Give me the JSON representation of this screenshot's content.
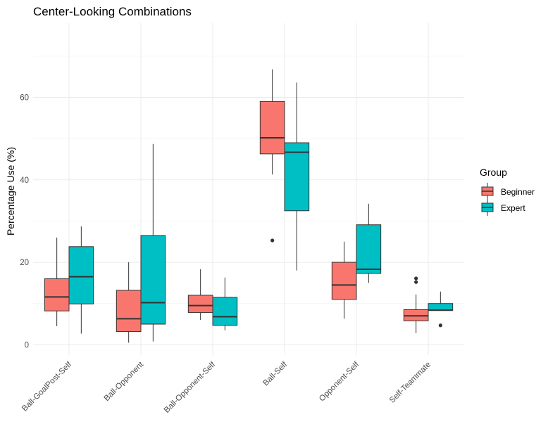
{
  "chart_data": {
    "type": "boxplot",
    "title": "Center-Looking Combinations",
    "xlabel": "",
    "ylabel": "Percentage Use (%)",
    "ylim": [
      -2.5,
      78
    ],
    "yticks": [
      0,
      20,
      40,
      60
    ],
    "y_minor_ticks": [
      10,
      30,
      50,
      70
    ],
    "grid": true,
    "legend": {
      "title": "Group",
      "position": "right",
      "entries": [
        {
          "name": "Beginner",
          "color": "#F8766D"
        },
        {
          "name": "Expert",
          "color": "#00BFC4"
        }
      ]
    },
    "categories": [
      "Ball-GoalPost-Self",
      "Ball-Opponent",
      "Ball-Opponent-Self",
      "Ball-Self",
      "Opponent-Self",
      "Self-Teammate"
    ],
    "series": [
      {
        "name": "Beginner",
        "color": "#F8766D",
        "boxes": [
          {
            "whisker_low": 4.5,
            "q1": 8.2,
            "median": 11.6,
            "q3": 16.0,
            "whisker_high": 26.0,
            "outliers": []
          },
          {
            "whisker_low": 0.5,
            "q1": 3.2,
            "median": 6.3,
            "q3": 13.2,
            "whisker_high": 20.0,
            "outliers": []
          },
          {
            "whisker_low": 6.0,
            "q1": 7.8,
            "median": 9.5,
            "q3": 12.0,
            "whisker_high": 18.3,
            "outliers": []
          },
          {
            "whisker_low": 41.3,
            "q1": 46.3,
            "median": 50.2,
            "q3": 59.0,
            "whisker_high": 66.8,
            "outliers": [
              25.3
            ]
          },
          {
            "whisker_low": 6.3,
            "q1": 11.0,
            "median": 14.5,
            "q3": 20.0,
            "whisker_high": 25.0,
            "outliers": []
          },
          {
            "whisker_low": 2.8,
            "q1": 5.8,
            "median": 7.0,
            "q3": 8.5,
            "whisker_high": 12.2,
            "outliers": [
              15.2,
              16.1
            ]
          }
        ]
      },
      {
        "name": "Expert",
        "color": "#00BFC4",
        "boxes": [
          {
            "whisker_low": 2.7,
            "q1": 9.9,
            "median": 16.5,
            "q3": 23.8,
            "whisker_high": 28.7,
            "outliers": []
          },
          {
            "whisker_low": 0.8,
            "q1": 5.0,
            "median": 10.2,
            "q3": 26.5,
            "whisker_high": 48.7,
            "outliers": []
          },
          {
            "whisker_low": 3.5,
            "q1": 4.7,
            "median": 6.8,
            "q3": 11.5,
            "whisker_high": 16.3,
            "outliers": []
          },
          {
            "whisker_low": 18.0,
            "q1": 32.5,
            "median": 46.7,
            "q3": 49.0,
            "whisker_high": 63.6,
            "outliers": []
          },
          {
            "whisker_low": 15.0,
            "q1": 17.3,
            "median": 18.3,
            "q3": 29.1,
            "whisker_high": 34.2,
            "outliers": []
          },
          {
            "whisker_low": 8.3,
            "q1": 8.3,
            "median": 8.4,
            "q3": 10.0,
            "whisker_high": 12.9,
            "outliers": [
              4.7
            ]
          }
        ]
      }
    ]
  }
}
